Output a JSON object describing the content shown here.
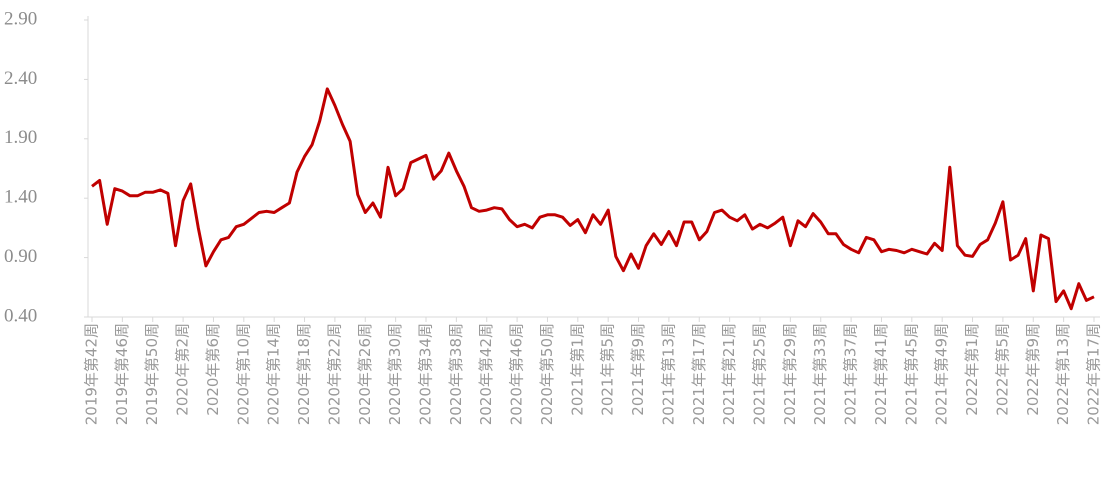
{
  "chart_data": {
    "type": "line",
    "categories": [
      "2019年第42周",
      null,
      null,
      null,
      "2019年第46周",
      null,
      null,
      null,
      "2019年第50周",
      null,
      null,
      null,
      "2020年第2周",
      null,
      null,
      null,
      "2020年第6周",
      null,
      null,
      null,
      "2020年第10周",
      null,
      null,
      null,
      "2020年第14周",
      null,
      null,
      null,
      "2020年第18周",
      null,
      null,
      null,
      "2020年第22周",
      null,
      null,
      null,
      "2020年第26周",
      null,
      null,
      null,
      "2020年第30周",
      null,
      null,
      null,
      "2020年第34周",
      null,
      null,
      null,
      "2020年第38周",
      null,
      null,
      null,
      "2020年第42周",
      null,
      null,
      null,
      "2020年第46周",
      null,
      null,
      null,
      "2020年第50周",
      null,
      null,
      null,
      "2021年第1周",
      null,
      null,
      null,
      "2021年第5周",
      null,
      null,
      null,
      "2021年第9周",
      null,
      null,
      null,
      "2021年第13周",
      null,
      null,
      null,
      "2021年第17周",
      null,
      null,
      null,
      "2021年第21周",
      null,
      null,
      null,
      "2021年第25周",
      null,
      null,
      null,
      "2021年第29周",
      null,
      null,
      null,
      "2021年第33周",
      null,
      null,
      null,
      "2021年第37周",
      null,
      null,
      null,
      "2021年第41周",
      null,
      null,
      null,
      "2021年第45周",
      null,
      null,
      null,
      "2021年第49周",
      null,
      null,
      null,
      "2022年第1周",
      null,
      null,
      null,
      "2022年第5周",
      null,
      null,
      null,
      "2022年第9周",
      null,
      null,
      null,
      "2022年第13周",
      null,
      null,
      null,
      "2022年第17周"
    ],
    "series": [
      {
        "color": "#c00000",
        "values": [
          1.5,
          1.55,
          1.18,
          1.48,
          1.46,
          1.42,
          1.42,
          1.45,
          1.45,
          1.47,
          1.44,
          1.0,
          1.38,
          1.52,
          1.15,
          0.83,
          0.95,
          1.05,
          1.07,
          1.16,
          1.18,
          1.23,
          1.28,
          1.29,
          1.28,
          1.32,
          1.36,
          1.62,
          1.75,
          1.85,
          2.05,
          2.32,
          2.18,
          2.02,
          1.88,
          1.43,
          1.28,
          1.36,
          1.24,
          1.66,
          1.42,
          1.48,
          1.7,
          1.73,
          1.76,
          1.56,
          1.63,
          1.78,
          1.63,
          1.5,
          1.32,
          1.29,
          1.3,
          1.32,
          1.31,
          1.22,
          1.16,
          1.18,
          1.15,
          1.24,
          1.26,
          1.26,
          1.24,
          1.17,
          1.22,
          1.11,
          1.26,
          1.18,
          1.3,
          0.91,
          0.79,
          0.93,
          0.81,
          1.0,
          1.1,
          1.01,
          1.12,
          1.0,
          1.2,
          1.2,
          1.05,
          1.12,
          1.28,
          1.3,
          1.24,
          1.21,
          1.26,
          1.14,
          1.18,
          1.15,
          1.19,
          1.24,
          1.0,
          1.21,
          1.16,
          1.27,
          1.2,
          1.1,
          1.1,
          1.01,
          0.97,
          0.94,
          1.07,
          1.05,
          0.95,
          0.97,
          0.96,
          0.94,
          0.97,
          0.95,
          0.93,
          1.02,
          0.96,
          1.66,
          1.0,
          0.92,
          0.91,
          1.01,
          1.05,
          1.19,
          1.37,
          0.88,
          0.92,
          1.06,
          0.62,
          1.09,
          1.06,
          0.53,
          0.62,
          0.47,
          0.68,
          0.54,
          0.57
        ]
      }
    ],
    "ylim": [
      0.4,
      2.9
    ],
    "yticks": [
      {
        "value": 0.4,
        "label": "0.40"
      },
      {
        "value": 0.9,
        "label": "0.90"
      },
      {
        "value": 1.4,
        "label": "1.40"
      },
      {
        "value": 1.9,
        "label": "1.90"
      },
      {
        "value": 2.4,
        "label": "2.40"
      },
      {
        "value": 2.9,
        "label": "2.90"
      }
    ],
    "grid": false
  }
}
